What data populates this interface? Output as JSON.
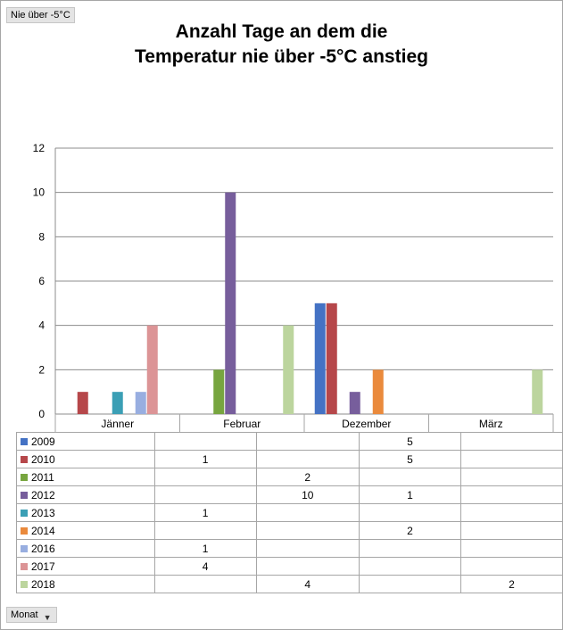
{
  "filter_button": {
    "label": "Nie über -5°C"
  },
  "row_field_button": {
    "label": "Monat",
    "arrow": "▼"
  },
  "chart_data": {
    "type": "bar",
    "title_line1": "Anzahl Tage an dem die",
    "title_line2": "Temperatur nie über -5°C anstieg",
    "categories": [
      "Jänner",
      "Februar",
      "Dezember",
      "März"
    ],
    "ylim": [
      0,
      12
    ],
    "yticks": [
      0,
      2,
      4,
      6,
      8,
      10,
      12
    ],
    "grid": true,
    "legend": "data-table",
    "series": [
      {
        "name": "2009",
        "color": "#4472c4",
        "values": [
          null,
          null,
          5,
          null
        ]
      },
      {
        "name": "2010",
        "color": "#b6474a",
        "values": [
          1,
          null,
          5,
          null
        ]
      },
      {
        "name": "2011",
        "color": "#77a53f",
        "values": [
          null,
          2,
          null,
          null
        ]
      },
      {
        "name": "2012",
        "color": "#775e9c",
        "values": [
          null,
          10,
          1,
          null
        ]
      },
      {
        "name": "2013",
        "color": "#3b9fb5",
        "values": [
          1,
          null,
          null,
          null
        ]
      },
      {
        "name": "2014",
        "color": "#ea8a3c",
        "values": [
          null,
          null,
          2,
          null
        ]
      },
      {
        "name": "2016",
        "color": "#98aee0",
        "values": [
          1,
          null,
          null,
          null
        ]
      },
      {
        "name": "2017",
        "color": "#dc9496",
        "values": [
          4,
          null,
          null,
          null
        ]
      },
      {
        "name": "2018",
        "color": "#bcd59e",
        "values": [
          null,
          4,
          null,
          2
        ]
      }
    ]
  }
}
